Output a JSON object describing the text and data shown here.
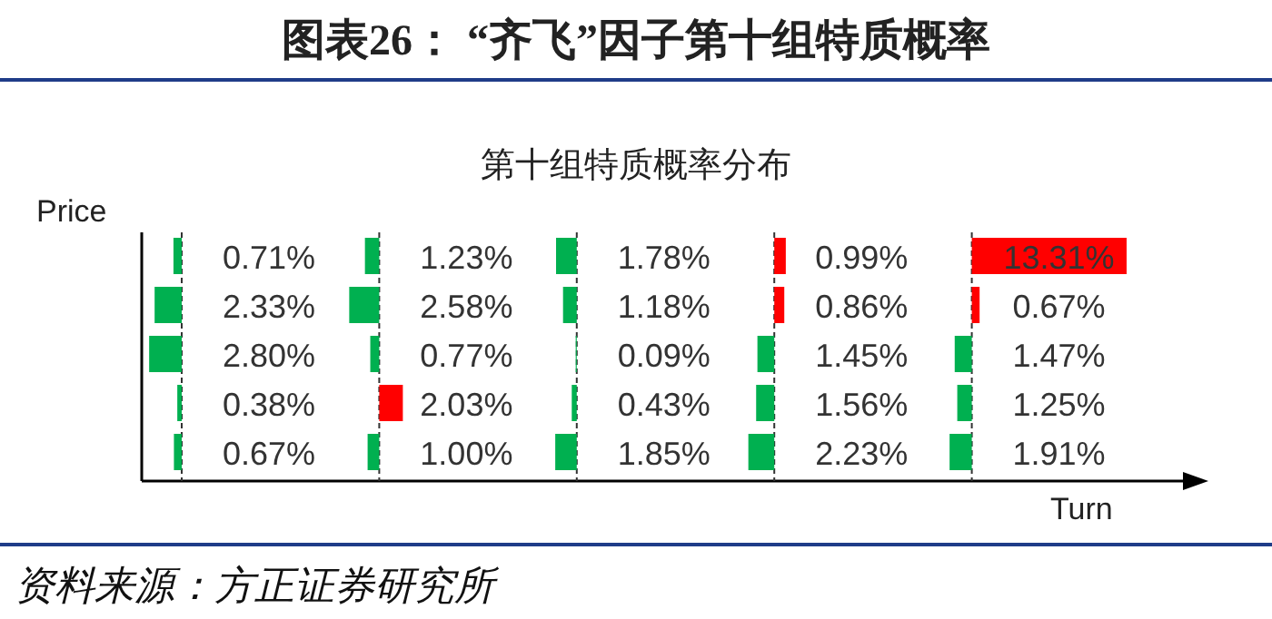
{
  "chart_data": {
    "type": "other",
    "title": "图表26：    “齐飞”因子第十组特质概率",
    "subtitle": "第十组特质概率分布",
    "xlabel": "Turn",
    "ylabel": "Price",
    "values": [
      0.71,
      1.23,
      1.78,
      0.99,
      13.31,
      2.33,
      2.58,
      1.18,
      0.86,
      0.67,
      2.8,
      0.77,
      0.09,
      1.45,
      1.47,
      0.38,
      2.03,
      0.43,
      1.56,
      1.25,
      0.67,
      1.0,
      1.85,
      2.23,
      1.91
    ],
    "value_labels": [
      "0.71%",
      "1.23%",
      "1.78%",
      "0.99%",
      "13.31%",
      "2.33%",
      "2.58%",
      "1.18%",
      "0.86%",
      "0.67%",
      "2.80%",
      "0.77%",
      "0.09%",
      "1.45%",
      "1.47%",
      "0.38%",
      "2.03%",
      "0.43%",
      "1.56%",
      "1.25%",
      "0.67%",
      "1.00%",
      "1.85%",
      "2.23%",
      "1.91%"
    ],
    "colors": [
      "#00b050",
      "#00b050",
      "#00b050",
      "#ff0000",
      "#ff0000",
      "#00b050",
      "#00b050",
      "#00b050",
      "#ff0000",
      "#ff0000",
      "#00b050",
      "#00b050",
      "#00b050",
      "#00b050",
      "#00b050",
      "#00b050",
      "#ff0000",
      "#00b050",
      "#00b050",
      "#00b050",
      "#00b050",
      "#00b050",
      "#00b050",
      "#00b050",
      "#00b050"
    ],
    "annotations": [
      "资料来源：方正证券研究所"
    ]
  }
}
